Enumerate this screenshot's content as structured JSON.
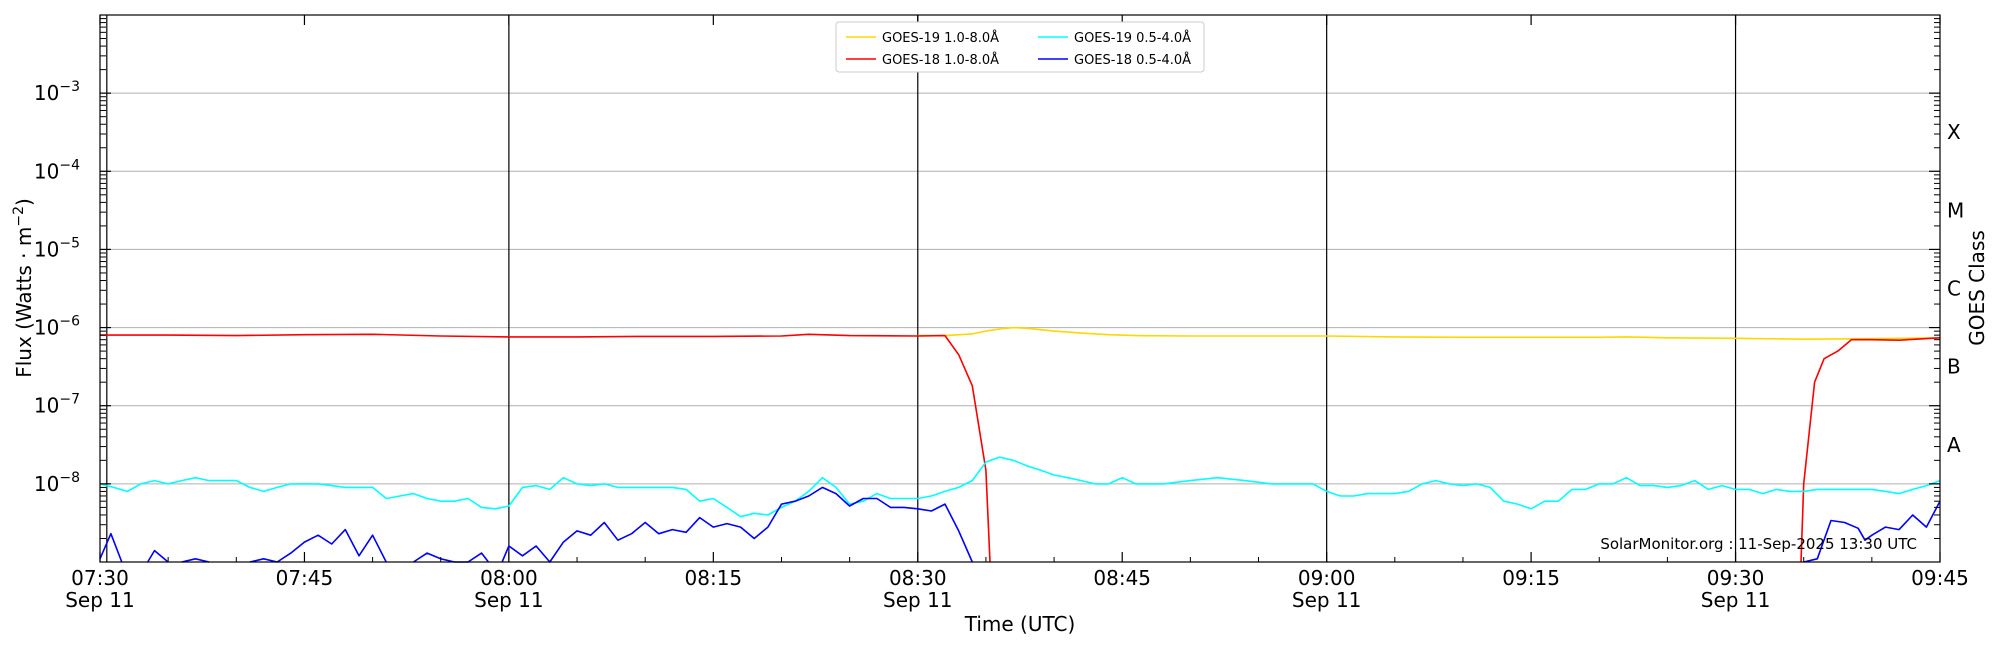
{
  "chart_data": {
    "type": "line",
    "xlabel": "Time (UTC)",
    "ylabel_main": "Flux (Watts · m",
    "ylabel_sup": "−2",
    "ylabel_close": ")",
    "y2label": "GOES Class",
    "credit": "SolarMonitor.org : 11-Sep-2025 13:30 UTC",
    "x_range_min": [
      450,
      585
    ],
    "y_scale": "log",
    "ylim": [
      1e-09,
      0.01
    ],
    "grid": "horizontal at decades; vertical lines at 07:30, 08:00, 08:30, 09:00, 09:30",
    "legend_position": "top-center",
    "x_ticks": [
      {
        "t": 450,
        "line1": "07:30",
        "line2": "Sep 11"
      },
      {
        "t": 465,
        "line1": "07:45",
        "line2": ""
      },
      {
        "t": 480,
        "line1": "08:00",
        "line2": "Sep 11"
      },
      {
        "t": 495,
        "line1": "08:15",
        "line2": ""
      },
      {
        "t": 510,
        "line1": "08:30",
        "line2": "Sep 11"
      },
      {
        "t": 525,
        "line1": "08:45",
        "line2": ""
      },
      {
        "t": 540,
        "line1": "09:00",
        "line2": "Sep 11"
      },
      {
        "t": 555,
        "line1": "09:15",
        "line2": ""
      },
      {
        "t": 570,
        "line1": "09:30",
        "line2": "Sep 11"
      },
      {
        "t": 585,
        "line1": "09:45",
        "line2": ""
      }
    ],
    "vlines": [
      450.5,
      480,
      510,
      540,
      570
    ],
    "y_ticks": [
      {
        "exp": -3,
        "base": "10",
        "sup": "−3"
      },
      {
        "exp": -4,
        "base": "10",
        "sup": "−4"
      },
      {
        "exp": -5,
        "base": "10",
        "sup": "−5"
      },
      {
        "exp": -6,
        "base": "10",
        "sup": "−6"
      },
      {
        "exp": -7,
        "base": "10",
        "sup": "−7"
      },
      {
        "exp": -8,
        "base": "10",
        "sup": "−8"
      }
    ],
    "goes_classes": [
      {
        "label": "X",
        "at": -3.5
      },
      {
        "label": "M",
        "at": -4.5
      },
      {
        "label": "C",
        "at": -5.5
      },
      {
        "label": "B",
        "at": -6.5
      },
      {
        "label": "A",
        "at": -7.5
      }
    ],
    "series": [
      {
        "name": "GOES-19 1.0-8.0Å",
        "color": "#ffd700",
        "points": [
          [
            510,
            7.9e-07
          ],
          [
            512,
            7.9e-07
          ],
          [
            514,
            8.3e-07
          ],
          [
            515,
            9e-07
          ],
          [
            516,
            9.6e-07
          ],
          [
            517,
            1e-06
          ],
          [
            518,
            9.8e-07
          ],
          [
            519,
            9.4e-07
          ],
          [
            520,
            9e-07
          ],
          [
            522,
            8.5e-07
          ],
          [
            524,
            8.1e-07
          ],
          [
            526,
            7.9e-07
          ],
          [
            530,
            7.8e-07
          ],
          [
            535,
            7.8e-07
          ],
          [
            540,
            7.8e-07
          ],
          [
            545,
            7.6e-07
          ],
          [
            550,
            7.5e-07
          ],
          [
            555,
            7.5e-07
          ],
          [
            560,
            7.5e-07
          ],
          [
            562,
            7.6e-07
          ],
          [
            565,
            7.4e-07
          ],
          [
            570,
            7.3e-07
          ],
          [
            575,
            7.1e-07
          ],
          [
            580,
            7.2e-07
          ],
          [
            585,
            7.4e-07
          ]
        ]
      },
      {
        "name": "GOES-18 1.0-8.0Å",
        "color": "#ff0000",
        "points": [
          [
            450,
            8e-07
          ],
          [
            455,
            8e-07
          ],
          [
            460,
            7.9e-07
          ],
          [
            465,
            8.1e-07
          ],
          [
            470,
            8.2e-07
          ],
          [
            475,
            7.8e-07
          ],
          [
            480,
            7.6e-07
          ],
          [
            485,
            7.6e-07
          ],
          [
            490,
            7.7e-07
          ],
          [
            495,
            7.7e-07
          ],
          [
            500,
            7.8e-07
          ],
          [
            502,
            8.2e-07
          ],
          [
            505,
            7.9e-07
          ],
          [
            510,
            7.8e-07
          ],
          [
            512,
            7.9e-07
          ],
          [
            513,
            4.5e-07
          ],
          [
            514,
            1.8e-07
          ],
          [
            515,
            1.5e-08
          ],
          [
            515.3,
            1e-09
          ],
          [
            null,
            null
          ],
          [
            574.8,
            1e-09
          ],
          [
            575,
            1e-08
          ],
          [
            575.8,
            2e-07
          ],
          [
            576.5,
            4e-07
          ],
          [
            577.5,
            5e-07
          ],
          [
            578.5,
            7e-07
          ],
          [
            580,
            7e-07
          ],
          [
            582,
            6.9e-07
          ],
          [
            585,
            7.4e-07
          ]
        ]
      },
      {
        "name": "GOES-19 0.5-4.0Å",
        "color": "#00ffff",
        "points": [
          [
            450,
            1e-08
          ],
          [
            451,
            9e-09
          ],
          [
            452,
            8e-09
          ],
          [
            453,
            1e-08
          ],
          [
            454,
            1.1e-08
          ],
          [
            455,
            1e-08
          ],
          [
            456,
            1.1e-08
          ],
          [
            457,
            1.2e-08
          ],
          [
            458,
            1.1e-08
          ],
          [
            460,
            1.1e-08
          ],
          [
            461,
            9e-09
          ],
          [
            462,
            8e-09
          ],
          [
            463,
            9e-09
          ],
          [
            464,
            1e-08
          ],
          [
            466,
            1e-08
          ],
          [
            467,
            9.5e-09
          ],
          [
            468,
            9e-09
          ],
          [
            469,
            9e-09
          ],
          [
            470,
            9e-09
          ],
          [
            471,
            6.5e-09
          ],
          [
            472,
            7e-09
          ],
          [
            473,
            7.5e-09
          ],
          [
            474,
            6.5e-09
          ],
          [
            475,
            6e-09
          ],
          [
            476,
            6e-09
          ],
          [
            477,
            6.5e-09
          ],
          [
            478,
            5e-09
          ],
          [
            479,
            4.8e-09
          ],
          [
            480,
            5.2e-09
          ],
          [
            481,
            9e-09
          ],
          [
            482,
            9.5e-09
          ],
          [
            483,
            8.5e-09
          ],
          [
            484,
            1.2e-08
          ],
          [
            485,
            1e-08
          ],
          [
            486,
            9.5e-09
          ],
          [
            487,
            1e-08
          ],
          [
            488,
            9e-09
          ],
          [
            490,
            9e-09
          ],
          [
            492,
            9e-09
          ],
          [
            493,
            8.5e-09
          ],
          [
            494,
            6e-09
          ],
          [
            495,
            6.5e-09
          ],
          [
            496,
            5e-09
          ],
          [
            497,
            3.8e-09
          ],
          [
            498,
            4.2e-09
          ],
          [
            499,
            4e-09
          ],
          [
            500,
            5e-09
          ],
          [
            501,
            6e-09
          ],
          [
            502,
            8e-09
          ],
          [
            503,
            1.2e-08
          ],
          [
            504,
            9e-09
          ],
          [
            505,
            5.5e-09
          ],
          [
            506,
            6e-09
          ],
          [
            507,
            7.5e-09
          ],
          [
            508,
            6.5e-09
          ],
          [
            509,
            6.5e-09
          ],
          [
            510,
            6.5e-09
          ],
          [
            511,
            7e-09
          ],
          [
            512,
            8e-09
          ],
          [
            513,
            9e-09
          ],
          [
            514,
            1.1e-08
          ],
          [
            515,
            1.9e-08
          ],
          [
            516,
            2.2e-08
          ],
          [
            517,
            2e-08
          ],
          [
            518,
            1.7e-08
          ],
          [
            519,
            1.5e-08
          ],
          [
            520,
            1.3e-08
          ],
          [
            521,
            1.2e-08
          ],
          [
            522,
            1.1e-08
          ],
          [
            523,
            1e-08
          ],
          [
            524,
            1e-08
          ],
          [
            525,
            1.2e-08
          ],
          [
            526,
            1e-08
          ],
          [
            528,
            1e-08
          ],
          [
            530,
            1.1e-08
          ],
          [
            532,
            1.2e-08
          ],
          [
            534,
            1.1e-08
          ],
          [
            536,
            1e-08
          ],
          [
            538,
            1e-08
          ],
          [
            539,
            1e-08
          ],
          [
            540,
            8e-09
          ],
          [
            541,
            7e-09
          ],
          [
            542,
            7e-09
          ],
          [
            543,
            7.5e-09
          ],
          [
            544,
            7.5e-09
          ],
          [
            545,
            7.5e-09
          ],
          [
            546,
            8e-09
          ],
          [
            547,
            1e-08
          ],
          [
            548,
            1.1e-08
          ],
          [
            549,
            1e-08
          ],
          [
            550,
            9.5e-09
          ],
          [
            551,
            1e-08
          ],
          [
            552,
            9e-09
          ],
          [
            553,
            6e-09
          ],
          [
            554,
            5.5e-09
          ],
          [
            555,
            4.8e-09
          ],
          [
            556,
            6e-09
          ],
          [
            557,
            6e-09
          ],
          [
            558,
            8.5e-09
          ],
          [
            559,
            8.5e-09
          ],
          [
            560,
            1e-08
          ],
          [
            561,
            1e-08
          ],
          [
            562,
            1.2e-08
          ],
          [
            563,
            9.5e-09
          ],
          [
            564,
            9.5e-09
          ],
          [
            565,
            9e-09
          ],
          [
            566,
            9.5e-09
          ],
          [
            567,
            1.1e-08
          ],
          [
            568,
            8.5e-09
          ],
          [
            569,
            9.5e-09
          ],
          [
            570,
            8.5e-09
          ],
          [
            571,
            8.5e-09
          ],
          [
            572,
            7.5e-09
          ],
          [
            573,
            8.5e-09
          ],
          [
            574,
            8e-09
          ],
          [
            575,
            8e-09
          ],
          [
            576,
            8.5e-09
          ],
          [
            577,
            8.5e-09
          ],
          [
            578,
            8.5e-09
          ],
          [
            579,
            8.5e-09
          ],
          [
            580,
            8.5e-09
          ],
          [
            581,
            8e-09
          ],
          [
            582,
            7.5e-09
          ],
          [
            583,
            8.5e-09
          ],
          [
            584,
            9.5e-09
          ],
          [
            585,
            1.1e-08
          ]
        ]
      },
      {
        "name": "GOES-18 0.5-4.0Å",
        "color": "#0000ff",
        "points": [
          [
            450,
            1.1e-09
          ],
          [
            450.8,
            2.3e-09
          ],
          [
            451.6,
            1e-09
          ],
          [
            null,
            null
          ],
          [
            453.5,
            1e-09
          ],
          [
            454,
            1.4e-09
          ],
          [
            455,
            1e-09
          ],
          [
            null,
            null
          ],
          [
            456,
            1e-09
          ],
          [
            457,
            1.1e-09
          ],
          [
            458,
            1e-09
          ],
          [
            null,
            null
          ],
          [
            461,
            1e-09
          ],
          [
            462,
            1.1e-09
          ],
          [
            463,
            1e-09
          ],
          [
            464,
            1.3e-09
          ],
          [
            465,
            1.8e-09
          ],
          [
            466,
            2.2e-09
          ],
          [
            467,
            1.7e-09
          ],
          [
            468,
            2.6e-09
          ],
          [
            469,
            1.2e-09
          ],
          [
            470,
            2.2e-09
          ],
          [
            471,
            1e-09
          ],
          [
            null,
            null
          ],
          [
            473,
            1e-09
          ],
          [
            474,
            1.3e-09
          ],
          [
            475,
            1.1e-09
          ],
          [
            476,
            1e-09
          ],
          [
            477,
            1e-09
          ],
          [
            478,
            1.3e-09
          ],
          [
            478.5,
            1e-09
          ],
          [
            null,
            null
          ],
          [
            479.5,
            1e-09
          ],
          [
            480,
            1.6e-09
          ],
          [
            481,
            1.2e-09
          ],
          [
            482,
            1.6e-09
          ],
          [
            483,
            1e-09
          ],
          [
            484,
            1.8e-09
          ],
          [
            485,
            2.5e-09
          ],
          [
            486,
            2.2e-09
          ],
          [
            487,
            3.2e-09
          ],
          [
            488,
            1.9e-09
          ],
          [
            489,
            2.3e-09
          ],
          [
            490,
            3.2e-09
          ],
          [
            491,
            2.3e-09
          ],
          [
            492,
            2.6e-09
          ],
          [
            493,
            2.4e-09
          ],
          [
            494,
            3.7e-09
          ],
          [
            495,
            2.8e-09
          ],
          [
            496,
            3.1e-09
          ],
          [
            497,
            2.8e-09
          ],
          [
            498,
            2e-09
          ],
          [
            499,
            2.8e-09
          ],
          [
            500,
            5.5e-09
          ],
          [
            501,
            6e-09
          ],
          [
            502,
            7e-09
          ],
          [
            503,
            9e-09
          ],
          [
            504,
            7.5e-09
          ],
          [
            505,
            5.2e-09
          ],
          [
            506,
            6.5e-09
          ],
          [
            507,
            6.5e-09
          ],
          [
            508,
            5e-09
          ],
          [
            509,
            5e-09
          ],
          [
            510,
            4.8e-09
          ],
          [
            511,
            4.5e-09
          ],
          [
            512,
            5.5e-09
          ],
          [
            513,
            2.5e-09
          ],
          [
            514,
            1e-09
          ],
          [
            null,
            null
          ],
          [
            575,
            1e-09
          ],
          [
            576,
            1.1e-09
          ],
          [
            577,
            3.4e-09
          ],
          [
            578,
            3.2e-09
          ],
          [
            579,
            2.7e-09
          ],
          [
            579.5,
            1.9e-09
          ],
          [
            580,
            2.2e-09
          ],
          [
            581,
            2.8e-09
          ],
          [
            582,
            2.6e-09
          ],
          [
            583,
            4e-09
          ],
          [
            584,
            2.8e-09
          ],
          [
            585,
            6e-09
          ]
        ]
      }
    ]
  }
}
